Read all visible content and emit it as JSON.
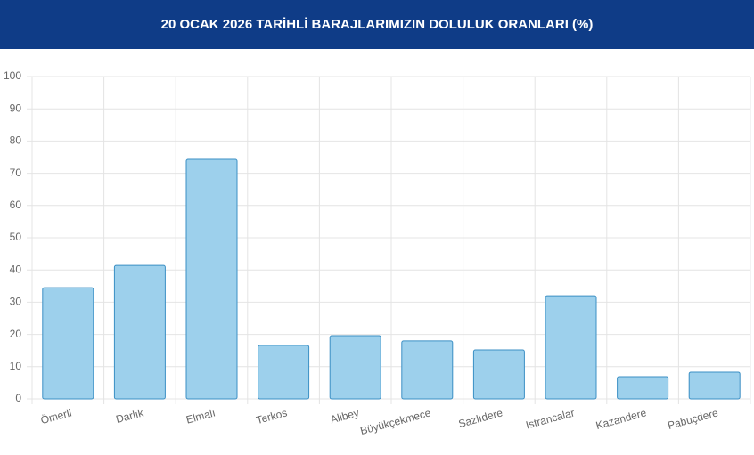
{
  "chart_data": {
    "type": "bar",
    "title": "20 OCAK 2026 TARİHLİ BARAJLARIMIZIN DOLULUK ORANLARI (%)",
    "categories": [
      "Ömerli",
      "Darlık",
      "Elmalı",
      "Terkos",
      "Alibey",
      "Büyükçekmece",
      "Sazlıdere",
      "Istrancalar",
      "Kazandere",
      "Pabuçdere"
    ],
    "values": [
      34.5,
      41.4,
      74.3,
      16.6,
      19.6,
      18.0,
      15.2,
      32.0,
      6.9,
      8.3
    ],
    "color": "#9dd0ec",
    "border_color": "#3b8fc4",
    "ylim": [
      0,
      100
    ],
    "yticks": [
      0,
      10,
      20,
      30,
      40,
      50,
      60,
      70,
      80,
      90,
      100
    ],
    "grid": true
  }
}
